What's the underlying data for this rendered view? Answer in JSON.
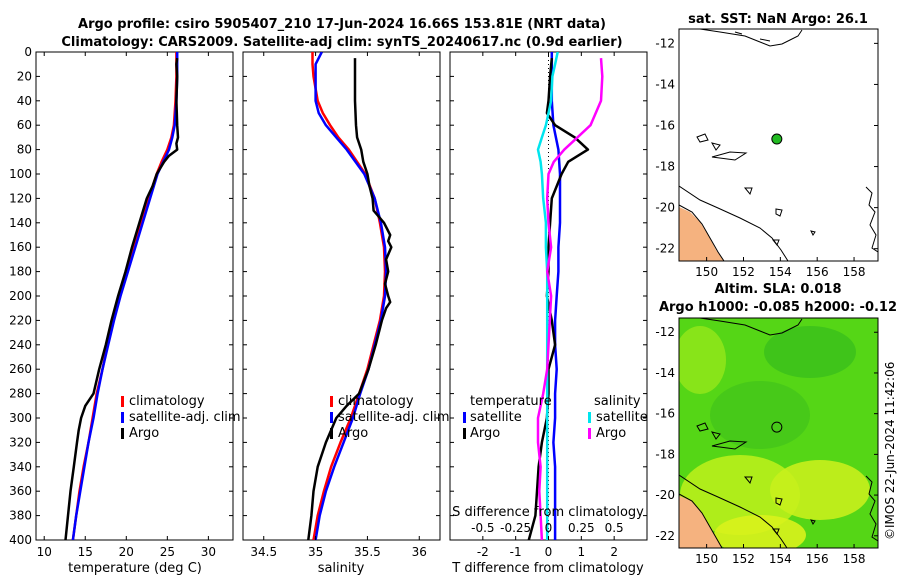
{
  "figure": {
    "title_line1": "Argo profile: csiro 5905407_210 17-Jun-2024 16.66S 153.81E (NRT data)",
    "title_line2": "Climatology: CARS2009. Satellite-adj clim: synTS_20240617.nc (0.9d earlier)",
    "footer": "©IMOS 22-Jun-2024 11:42:06",
    "colors": {
      "climatology": "#ff0000",
      "satellite": "#0000ff",
      "argo": "#000000",
      "sat_salinity": "#00e5ee",
      "argo_salinity": "#ff00ff",
      "land": "#f5b27f",
      "map_point": "#22bb22"
    }
  },
  "chart_data": [
    {
      "type": "line",
      "id": "temperature",
      "xlabel": "temperature (deg C)",
      "ylabel": "",
      "xlim": [
        9,
        33
      ],
      "ylim": [
        400,
        0
      ],
      "x_ticks": [
        10,
        15,
        20,
        25,
        30
      ],
      "y_ticks": [
        0,
        20,
        40,
        60,
        80,
        100,
        120,
        140,
        160,
        180,
        200,
        220,
        240,
        260,
        280,
        300,
        320,
        340,
        360,
        380,
        400
      ],
      "legend": [
        "climatology",
        "satellite-adj. clim",
        "Argo"
      ],
      "series": [
        {
          "name": "climatology",
          "color": "#ff0000",
          "depth": [
            0,
            20,
            40,
            60,
            70,
            80,
            90,
            100,
            120,
            140,
            160,
            180,
            200,
            220,
            240,
            260,
            280,
            300,
            320,
            340,
            360,
            380,
            400
          ],
          "values": [
            26.1,
            26.1,
            26.0,
            25.8,
            25.5,
            25.0,
            24.3,
            23.7,
            22.7,
            21.8,
            20.9,
            20.0,
            19.2,
            18.4,
            17.7,
            17.1,
            16.4,
            15.9,
            15.4,
            14.8,
            14.3,
            13.9,
            13.5
          ]
        },
        {
          "name": "satellite-adj. clim",
          "color": "#0000ff",
          "depth": [
            0,
            20,
            40,
            60,
            70,
            80,
            90,
            100,
            120,
            140,
            160,
            180,
            200,
            220,
            240,
            260,
            280,
            300,
            320,
            340,
            360,
            380,
            400
          ],
          "values": [
            26.2,
            26.2,
            26.1,
            25.9,
            25.6,
            25.2,
            24.5,
            23.8,
            22.9,
            22.0,
            21.1,
            20.2,
            19.3,
            18.5,
            17.8,
            17.1,
            16.5,
            16.0,
            15.4,
            14.9,
            14.4,
            13.9,
            13.5
          ]
        },
        {
          "name": "Argo",
          "color": "#000000",
          "depth": [
            5,
            10,
            20,
            40,
            60,
            70,
            75,
            80,
            85,
            90,
            100,
            110,
            120,
            140,
            160,
            180,
            200,
            220,
            240,
            260,
            280,
            290,
            300,
            310,
            320,
            340,
            360,
            380,
            400
          ],
          "values": [
            26.2,
            26.1,
            26.2,
            26.1,
            26.2,
            26.3,
            26.1,
            26.2,
            25.2,
            24.6,
            23.7,
            23.2,
            22.5,
            21.6,
            20.7,
            19.9,
            19.0,
            18.2,
            17.5,
            16.7,
            16.0,
            15.0,
            14.5,
            14.2,
            14.0,
            13.6,
            13.2,
            12.9,
            12.6
          ]
        }
      ]
    },
    {
      "type": "line",
      "id": "salinity",
      "xlabel": "salinity",
      "ylabel": "",
      "xlim": [
        34.3,
        36.2
      ],
      "ylim": [
        400,
        0
      ],
      "x_ticks": [
        34.5,
        35,
        35.5,
        36
      ],
      "x_tick_labels": [
        "34.5",
        "35",
        "35.5",
        "36"
      ],
      "legend": [
        "climatology",
        "satellite-adj. clim",
        "Argo"
      ],
      "series": [
        {
          "name": "climatology",
          "color": "#ff0000",
          "depth": [
            0,
            10,
            20,
            40,
            50,
            60,
            70,
            80,
            100,
            120,
            140,
            160,
            180,
            200,
            220,
            240,
            260,
            280,
            300,
            320,
            340,
            360,
            380,
            400
          ],
          "values": [
            34.97,
            34.97,
            34.98,
            35.02,
            35.07,
            35.14,
            35.22,
            35.32,
            35.48,
            35.57,
            35.62,
            35.66,
            35.67,
            35.66,
            35.62,
            35.56,
            35.5,
            35.42,
            35.34,
            35.24,
            35.15,
            35.08,
            35.02,
            34.98
          ]
        },
        {
          "name": "satellite-adj. clim",
          "color": "#0000ff",
          "depth": [
            0,
            10,
            20,
            40,
            50,
            60,
            70,
            80,
            100,
            120,
            140,
            160,
            180,
            200,
            220,
            240,
            260,
            280,
            300,
            320,
            340,
            360,
            380,
            400
          ],
          "values": [
            35.06,
            35.0,
            35.0,
            35.0,
            35.03,
            35.1,
            35.2,
            35.3,
            35.47,
            35.57,
            35.63,
            35.67,
            35.68,
            35.67,
            35.63,
            35.57,
            35.51,
            35.43,
            35.36,
            35.27,
            35.18,
            35.1,
            35.04,
            35.0
          ]
        },
        {
          "name": "Argo",
          "color": "#000000",
          "depth": [
            5,
            10,
            20,
            40,
            60,
            70,
            80,
            90,
            100,
            110,
            120,
            130,
            140,
            150,
            155,
            160,
            170,
            180,
            190,
            200,
            205,
            210,
            220,
            240,
            260,
            280,
            290,
            300,
            310,
            320,
            340,
            360,
            380,
            400
          ],
          "values": [
            35.38,
            35.38,
            35.38,
            35.38,
            35.39,
            35.4,
            35.44,
            35.46,
            35.5,
            35.52,
            35.55,
            35.56,
            35.66,
            35.72,
            35.7,
            35.73,
            35.68,
            35.7,
            35.67,
            35.7,
            35.72,
            35.68,
            35.64,
            35.58,
            35.51,
            35.42,
            35.3,
            35.2,
            35.15,
            35.1,
            35.02,
            34.98,
            34.96,
            34.93
          ]
        }
      ]
    },
    {
      "type": "line",
      "id": "differences",
      "xlabel": "T difference from climatology",
      "xlabel_top": "S difference from climatology",
      "ylabel": "",
      "xlim": [
        -3,
        3
      ],
      "ylim": [
        400,
        0
      ],
      "x_ticks": [
        -2,
        -1,
        0,
        1,
        2
      ],
      "x_tick_labels": [
        "-2",
        "-1",
        "0",
        "1",
        "2"
      ],
      "s_ticks": [
        -0.5,
        -0.25,
        0,
        0.25,
        0.5
      ],
      "s_tick_labels": [
        "-0.5",
        "-0.25",
        "0",
        "0.25",
        "0.5"
      ],
      "s_scale_to_t": 4,
      "legend_t_title": "temperature",
      "legend_s_title": "salinity",
      "legend_t": [
        "satellite",
        "Argo"
      ],
      "legend_s": [
        "satellite",
        "Argo"
      ],
      "series": [
        {
          "name": "T satellite",
          "color": "#0000ff",
          "depth": [
            0,
            20,
            40,
            60,
            80,
            100,
            120,
            140,
            160,
            180,
            200,
            220,
            240,
            260,
            280,
            300,
            320,
            340,
            360,
            380,
            400
          ],
          "values": [
            0.1,
            0.1,
            0.1,
            0.15,
            0.3,
            0.35,
            0.35,
            0.35,
            0.3,
            0.3,
            0.25,
            0.2,
            0.2,
            0.25,
            0.2,
            0.2,
            0.15,
            0.2,
            0.2,
            0.2,
            0.2
          ]
        },
        {
          "name": "T Argo",
          "color": "#000000",
          "depth": [
            5,
            20,
            40,
            50,
            60,
            70,
            80,
            90,
            100,
            120,
            140,
            160,
            180,
            200,
            220,
            240,
            260,
            280,
            300,
            320,
            340,
            360,
            380,
            400
          ],
          "values": [
            0.1,
            0.05,
            0.0,
            -0.05,
            0.2,
            0.8,
            1.2,
            0.6,
            0.4,
            0.1,
            0.05,
            0.0,
            0.0,
            -0.05,
            0.1,
            0.2,
            0.0,
            0.0,
            -0.05,
            -0.2,
            -0.3,
            -0.35,
            -0.4,
            -0.6
          ]
        },
        {
          "name": "S satellite",
          "color": "#00e5ee",
          "depth": [
            0,
            10,
            20,
            40,
            60,
            70,
            80,
            90,
            100,
            120,
            140,
            160,
            180,
            200,
            220,
            240,
            260,
            280,
            300,
            320,
            340,
            360,
            380,
            400
          ],
          "values": [
            0.07,
            0.05,
            0.03,
            0.02,
            -0.02,
            -0.05,
            -0.08,
            -0.06,
            -0.05,
            -0.04,
            -0.02,
            -0.02,
            -0.01,
            -0.01,
            -0.01,
            -0.01,
            -0.01,
            -0.01,
            -0.01,
            -0.01,
            -0.01,
            -0.01,
            -0.01,
            -0.01
          ]
        },
        {
          "name": "S Argo",
          "color": "#ff00ff",
          "depth": [
            5,
            20,
            40,
            60,
            70,
            80,
            90,
            100,
            120,
            140,
            160,
            180,
            200,
            220,
            240,
            260,
            280,
            300,
            320,
            340,
            360,
            380,
            400
          ],
          "values": [
            0.4,
            0.41,
            0.4,
            0.32,
            0.22,
            0.12,
            0.04,
            0.0,
            -0.01,
            0.0,
            0.02,
            -0.01,
            0.02,
            0.01,
            0.0,
            -0.01,
            -0.04,
            -0.08,
            -0.08,
            -0.06,
            -0.07,
            -0.06,
            -0.05
          ]
        }
      ]
    },
    {
      "type": "map",
      "id": "map_sst",
      "title": "sat. SST: NaN Argo: 26.1",
      "xlim": [
        148.5,
        159.3
      ],
      "ylim": [
        -22.6,
        -11.3
      ],
      "x_ticks": [
        150,
        152,
        154,
        156,
        158
      ],
      "y_ticks": [
        -12,
        -14,
        -16,
        -18,
        -20,
        -22
      ],
      "argo_point": {
        "lon": 153.81,
        "lat": -16.66
      }
    },
    {
      "type": "map",
      "id": "map_sla",
      "title_line1": "Altim. SLA: 0.018",
      "title_line2": "Argo h1000: -0.085 h2000: -0.12",
      "xlim": [
        148.5,
        159.3
      ],
      "ylim": [
        -22.6,
        -11.3
      ],
      "x_ticks": [
        150,
        152,
        154,
        156,
        158
      ],
      "y_ticks": [
        -12,
        -14,
        -16,
        -18,
        -20,
        -22
      ],
      "argo_point": {
        "lon": 153.81,
        "lat": -16.66
      }
    }
  ]
}
